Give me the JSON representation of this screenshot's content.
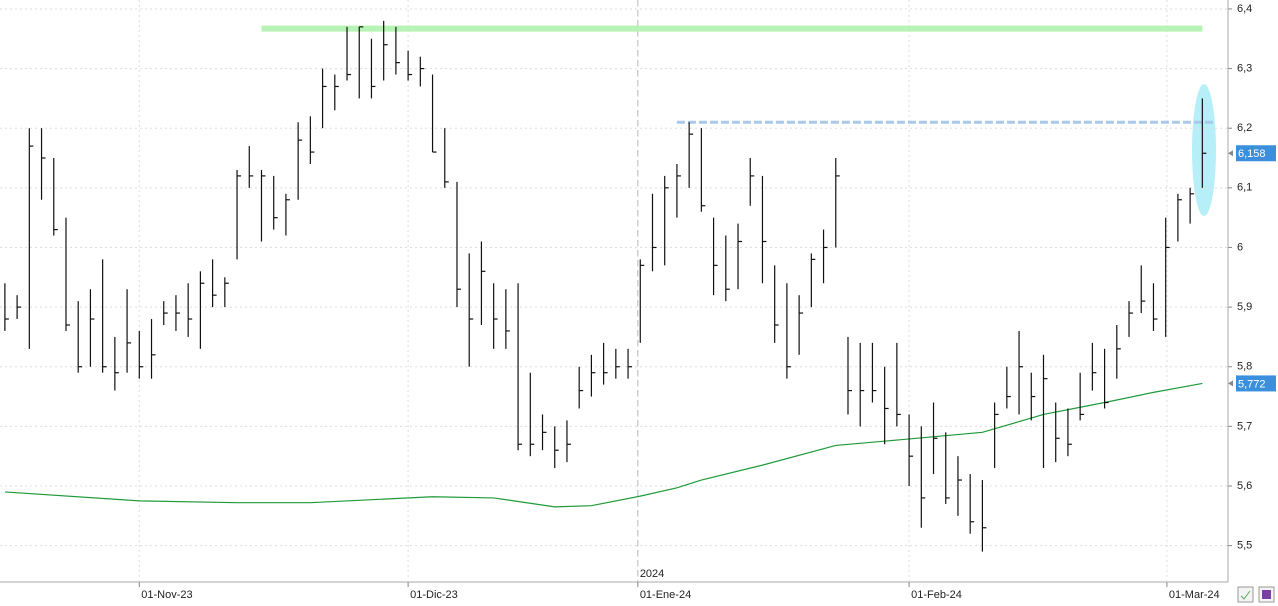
{
  "chart_data": {
    "type": "ohlc",
    "ylim": [
      5.439,
      6.415
    ],
    "yticks": [
      {
        "value": 5.5,
        "label": "5,5"
      },
      {
        "value": 5.6,
        "label": "5,6"
      },
      {
        "value": 5.7,
        "label": "5,7"
      },
      {
        "value": 5.8,
        "label": "5,8"
      },
      {
        "value": 5.9,
        "label": "5,9"
      },
      6,
      {
        "value": 6.1,
        "label": "6,1"
      },
      {
        "value": 6.2,
        "label": "6,2"
      },
      {
        "value": 6.3,
        "label": "6,3"
      },
      {
        "value": 6.4,
        "label": "6,4"
      }
    ],
    "xlim": [
      -0.4,
      100.1
    ],
    "xticks": [
      {
        "value": 11,
        "label": "01-Nov-23"
      },
      {
        "value": 33,
        "label": "01-Dic-23"
      },
      {
        "value": 51.8,
        "label": "01-Ene-24"
      },
      {
        "value": 74,
        "label": "01-Feb-24"
      },
      {
        "value": 95.1,
        "label": "01-Mar-24"
      }
    ],
    "year_marker": {
      "value": 51.8,
      "label": "2024"
    },
    "grid": true,
    "bar_color": "#111111",
    "high": [
      5.94,
      5.92,
      6.2,
      6.2,
      6.15,
      6.05,
      5.91,
      5.93,
      5.98,
      5.85,
      5.93,
      5.86,
      5.88,
      5.91,
      5.92,
      5.94,
      5.96,
      5.98,
      5.95,
      6.13,
      6.17,
      6.13,
      6.12,
      6.09,
      6.21,
      6.22,
      6.3,
      6.29,
      6.37,
      6.37,
      6.35,
      6.38,
      6.37,
      6.33,
      6.32,
      6.29,
      6.2,
      6.11,
      5.99,
      6.01,
      5.94,
      5.93,
      5.94,
      5.79,
      5.72,
      5.7,
      5.71,
      5.8,
      5.82,
      5.84,
      5.83,
      5.83,
      5.98,
      6.09,
      6.12,
      6.14,
      6.21,
      6.2,
      6.05,
      6.02,
      6.04,
      6.15,
      6.12,
      5.97,
      5.94,
      5.92,
      5.99,
      6.03,
      6.15,
      5.85,
      5.84,
      5.84,
      5.8,
      5.84,
      5.72,
      5.7,
      5.74,
      5.69,
      5.65,
      5.62,
      5.61,
      5.74,
      5.8,
      5.86,
      5.79,
      5.82,
      5.74,
      5.73,
      5.79,
      5.84,
      5.83,
      5.87,
      5.91,
      5.97,
      5.94,
      6.05,
      6.09,
      6.1,
      6.25
    ],
    "low": [
      5.86,
      5.88,
      5.83,
      6.08,
      6.02,
      5.86,
      5.79,
      5.8,
      5.79,
      5.76,
      5.79,
      5.78,
      5.78,
      5.87,
      5.86,
      5.85,
      5.83,
      5.9,
      5.9,
      5.98,
      6.1,
      6.01,
      6.03,
      6.02,
      6.08,
      6.14,
      6.2,
      6.23,
      6.28,
      6.25,
      6.25,
      6.28,
      6.29,
      6.28,
      6.27,
      6.16,
      6.1,
      5.9,
      5.8,
      5.87,
      5.83,
      5.83,
      5.66,
      5.65,
      5.66,
      5.63,
      5.64,
      5.73,
      5.75,
      5.77,
      5.78,
      5.78,
      5.84,
      5.96,
      5.97,
      6.05,
      6.1,
      6.06,
      5.92,
      5.91,
      5.93,
      6.07,
      5.94,
      5.84,
      5.78,
      5.82,
      5.9,
      5.94,
      6.0,
      5.72,
      5.7,
      5.74,
      5.67,
      5.7,
      5.6,
      5.53,
      5.62,
      5.57,
      5.55,
      5.52,
      5.49,
      5.63,
      5.73,
      5.72,
      5.71,
      5.63,
      5.64,
      5.65,
      5.71,
      5.76,
      5.73,
      5.78,
      5.85,
      5.89,
      5.86,
      5.85,
      6.01,
      6.04,
      6.1
    ],
    "close": [
      5.88,
      5.9,
      6.17,
      6.15,
      6.03,
      5.87,
      5.8,
      5.88,
      5.8,
      5.79,
      5.84,
      5.8,
      5.82,
      5.89,
      5.89,
      5.88,
      5.94,
      5.92,
      5.94,
      6.12,
      6.12,
      6.12,
      6.05,
      6.08,
      6.18,
      6.16,
      6.27,
      6.27,
      6.29,
      6.37,
      6.27,
      6.34,
      6.31,
      6.29,
      6.3,
      6.16,
      6.11,
      5.93,
      5.88,
      5.96,
      5.88,
      5.86,
      5.67,
      5.67,
      5.69,
      5.66,
      5.67,
      5.76,
      5.79,
      5.79,
      5.8,
      5.8,
      5.97,
      6.0,
      6.1,
      6.12,
      6.19,
      6.07,
      5.97,
      5.93,
      6.01,
      6.12,
      6.01,
      5.87,
      5.8,
      5.89,
      5.98,
      6.0,
      6.12,
      5.76,
      5.76,
      5.76,
      5.73,
      5.72,
      5.65,
      5.58,
      5.68,
      5.58,
      5.61,
      5.54,
      5.53,
      5.72,
      5.75,
      5.8,
      5.75,
      5.78,
      5.68,
      5.67,
      5.72,
      5.79,
      5.74,
      5.83,
      5.89,
      5.91,
      5.88,
      6.0,
      6.08,
      6.09,
      6.158
    ],
    "moving_average": {
      "color": "#1e9a3a",
      "x": [
        0,
        11,
        19,
        25,
        35,
        40,
        45,
        48,
        52,
        55,
        57,
        62,
        68,
        73,
        80,
        85,
        90,
        94,
        98
      ],
      "values": [
        5.59,
        5.575,
        5.572,
        5.572,
        5.582,
        5.58,
        5.565,
        5.567,
        5.583,
        5.597,
        5.61,
        5.635,
        5.668,
        5.677,
        5.69,
        5.72,
        5.74,
        5.757,
        5.772
      ]
    },
    "levels": [
      {
        "value": 6.367,
        "x": [
          21,
          98
        ],
        "color": "#b7f3b4",
        "style": "solid"
      },
      {
        "value": 6.21,
        "x": [
          55,
          99
        ],
        "color": "#a9c8ea",
        "style": "dashed"
      }
    ],
    "last_values": [
      {
        "value": 6.158,
        "label": "6,158",
        "color": "#3b8fdc"
      },
      {
        "value": 5.772,
        "label": "5,772",
        "color": "#3b8fdc"
      }
    ]
  }
}
